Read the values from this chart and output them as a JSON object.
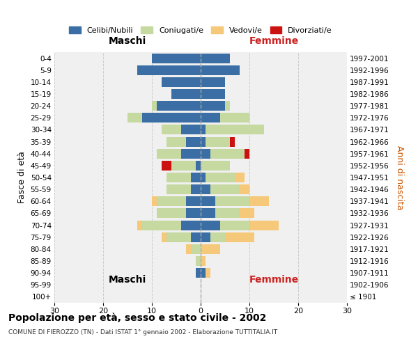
{
  "age_groups": [
    "100+",
    "95-99",
    "90-94",
    "85-89",
    "80-84",
    "75-79",
    "70-74",
    "65-69",
    "60-64",
    "55-59",
    "50-54",
    "45-49",
    "40-44",
    "35-39",
    "30-34",
    "25-29",
    "20-24",
    "15-19",
    "10-14",
    "5-9",
    "0-4"
  ],
  "birth_years": [
    "≤ 1901",
    "1902-1906",
    "1907-1911",
    "1912-1916",
    "1917-1921",
    "1922-1926",
    "1927-1931",
    "1932-1936",
    "1937-1941",
    "1942-1946",
    "1947-1951",
    "1952-1956",
    "1957-1961",
    "1962-1966",
    "1967-1971",
    "1972-1976",
    "1977-1981",
    "1982-1986",
    "1987-1991",
    "1992-1996",
    "1997-2001"
  ],
  "males": {
    "celibi": [
      0,
      0,
      1,
      0,
      0,
      2,
      4,
      3,
      3,
      2,
      2,
      1,
      4,
      3,
      4,
      12,
      9,
      6,
      8,
      13,
      10
    ],
    "coniugati": [
      0,
      0,
      0,
      1,
      2,
      5,
      8,
      6,
      6,
      5,
      5,
      5,
      5,
      4,
      4,
      3,
      1,
      0,
      0,
      0,
      0
    ],
    "vedovi": [
      0,
      0,
      0,
      0,
      1,
      1,
      1,
      0,
      1,
      0,
      0,
      0,
      0,
      0,
      0,
      0,
      0,
      0,
      0,
      0,
      0
    ],
    "divorziati": [
      0,
      0,
      0,
      0,
      0,
      0,
      0,
      0,
      0,
      0,
      0,
      2,
      0,
      0,
      0,
      0,
      0,
      0,
      0,
      0,
      0
    ]
  },
  "females": {
    "nubili": [
      0,
      0,
      1,
      0,
      0,
      2,
      4,
      3,
      3,
      2,
      1,
      0,
      2,
      1,
      1,
      4,
      5,
      5,
      5,
      8,
      6
    ],
    "coniugate": [
      0,
      0,
      0,
      0,
      0,
      3,
      6,
      5,
      7,
      6,
      6,
      6,
      7,
      5,
      12,
      6,
      1,
      0,
      0,
      0,
      0
    ],
    "vedove": [
      0,
      0,
      1,
      1,
      4,
      6,
      6,
      3,
      4,
      2,
      2,
      0,
      0,
      0,
      0,
      0,
      0,
      0,
      0,
      0,
      0
    ],
    "divorziate": [
      0,
      0,
      0,
      0,
      0,
      0,
      0,
      0,
      0,
      0,
      0,
      0,
      1,
      1,
      0,
      0,
      0,
      0,
      0,
      0,
      0
    ]
  },
  "colors": {
    "celibi": "#3a6ea5",
    "coniugati": "#c5d9a0",
    "vedovi": "#f5c87a",
    "divorziati": "#cc1111"
  },
  "xlim": 30,
  "title": "Popolazione per età, sesso e stato civile - 2002",
  "subtitle": "COMUNE DI FIEROZZO (TN) - Dati ISTAT 1° gennaio 2002 - Elaborazione TUTTITALIA.IT",
  "ylabel_left": "Fasce di età",
  "ylabel_right": "Anni di nascita",
  "xlabel_left": "Maschi",
  "xlabel_right": "Femmine",
  "legend_labels": [
    "Celibi/Nubili",
    "Coniugati/e",
    "Vedovi/e",
    "Divorziati/e"
  ],
  "bg_color": "#f0f0f0",
  "grid_color": "#cccccc"
}
